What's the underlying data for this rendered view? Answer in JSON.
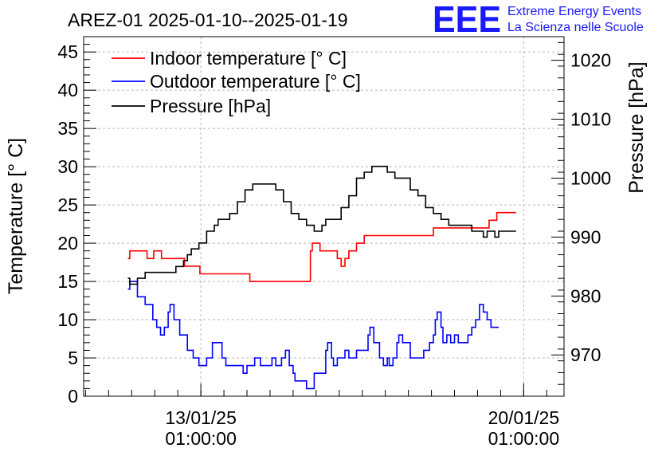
{
  "chart_data": {
    "type": "line",
    "title": "AREZ-01 2025-01-10--2025-01-19",
    "ylabel": "Temperature [° C]",
    "y2label": "Pressure [hPa]",
    "ylim": [
      0,
      47
    ],
    "y2lim": [
      963,
      1024
    ],
    "x_range": [
      "2025-01-10 12:00",
      "2025-01-20 22:00"
    ],
    "grid": true,
    "legend_position": "top-left",
    "yticks": [
      0,
      5,
      10,
      15,
      20,
      25,
      30,
      35,
      40,
      45
    ],
    "y2ticks": [
      970,
      980,
      990,
      1000,
      1010,
      1020
    ],
    "xticks": [
      {
        "x": "2025-01-13 01:00",
        "line1": "13/01/25",
        "line2": "01:00:00"
      },
      {
        "x": "2025-01-20 01:00",
        "line1": "20/01/25",
        "line2": "01:00:00"
      }
    ],
    "series": [
      {
        "name": "Indoor temperature [° C]",
        "color": "#ff0000",
        "axis": "left",
        "points": [
          [
            "2025-01-11 11:00",
            18
          ],
          [
            "2025-01-11 12:00",
            19
          ],
          [
            "2025-01-11 20:00",
            19
          ],
          [
            "2025-01-11 21:00",
            18
          ],
          [
            "2025-01-12 00:00",
            18
          ],
          [
            "2025-01-12 00:30",
            19
          ],
          [
            "2025-01-12 04:00",
            19
          ],
          [
            "2025-01-12 04:30",
            18
          ],
          [
            "2025-01-12 16:00",
            18
          ],
          [
            "2025-01-12 16:30",
            17
          ],
          [
            "2025-01-13 00:00",
            17
          ],
          [
            "2025-01-13 00:30",
            16
          ],
          [
            "2025-01-14 02:00",
            16
          ],
          [
            "2025-01-14 02:30",
            15
          ],
          [
            "2025-01-15 00:00",
            15
          ],
          [
            "2025-01-15 10:00",
            19
          ],
          [
            "2025-01-15 11:00",
            20
          ],
          [
            "2025-01-15 13:00",
            20
          ],
          [
            "2025-01-15 15:00",
            19
          ],
          [
            "2025-01-15 20:00",
            19
          ],
          [
            "2025-01-16 00:00",
            18
          ],
          [
            "2025-01-16 02:00",
            17
          ],
          [
            "2025-01-16 04:00",
            18
          ],
          [
            "2025-01-16 06:00",
            19
          ],
          [
            "2025-01-16 10:00",
            20
          ],
          [
            "2025-01-16 14:00",
            21
          ],
          [
            "2025-01-17 18:00",
            21
          ],
          [
            "2025-01-17 20:00",
            21
          ],
          [
            "2025-01-17 23:00",
            21
          ],
          [
            "2025-01-18 02:00",
            22
          ],
          [
            "2025-01-18 12:00",
            22
          ],
          [
            "2025-01-18 16:00",
            22
          ],
          [
            "2025-01-19 06:00",
            22
          ],
          [
            "2025-01-19 07:00",
            23
          ],
          [
            "2025-01-19 10:00",
            23
          ],
          [
            "2025-01-19 11:00",
            24
          ],
          [
            "2025-01-19 21:00",
            24
          ]
        ]
      },
      {
        "name": "Outdoor temperature [° C]",
        "color": "#0000ff",
        "axis": "left",
        "points": [
          [
            "2025-01-11 11:00",
            14
          ],
          [
            "2025-01-11 12:00",
            15
          ],
          [
            "2025-01-11 16:00",
            13
          ],
          [
            "2025-01-11 20:00",
            12
          ],
          [
            "2025-01-12 00:00",
            10
          ],
          [
            "2025-01-12 02:00",
            9
          ],
          [
            "2025-01-12 04:00",
            8
          ],
          [
            "2025-01-12 06:00",
            9
          ],
          [
            "2025-01-12 08:00",
            11
          ],
          [
            "2025-01-12 09:00",
            12
          ],
          [
            "2025-01-12 11:00",
            10
          ],
          [
            "2025-01-12 14:00",
            8
          ],
          [
            "2025-01-12 18:00",
            6
          ],
          [
            "2025-01-12 21:00",
            5
          ],
          [
            "2025-01-13 00:00",
            4
          ],
          [
            "2025-01-13 04:00",
            5
          ],
          [
            "2025-01-13 07:00",
            7
          ],
          [
            "2025-01-13 09:00",
            7
          ],
          [
            "2025-01-13 12:00",
            5
          ],
          [
            "2025-01-13 14:00",
            4
          ],
          [
            "2025-01-13 17:00",
            4
          ],
          [
            "2025-01-13 20:00",
            4
          ],
          [
            "2025-01-13 23:00",
            3
          ],
          [
            "2025-01-14 01:00",
            4
          ],
          [
            "2025-01-14 05:00",
            5
          ],
          [
            "2025-01-14 08:00",
            4
          ],
          [
            "2025-01-14 12:00",
            4
          ],
          [
            "2025-01-14 14:00",
            5
          ],
          [
            "2025-01-14 16:00",
            4
          ],
          [
            "2025-01-14 19:00",
            5
          ],
          [
            "2025-01-14 21:00",
            6
          ],
          [
            "2025-01-14 23:00",
            4
          ],
          [
            "2025-01-15 01:00",
            3
          ],
          [
            "2025-01-15 02:00",
            2
          ],
          [
            "2025-01-15 06:00",
            2
          ],
          [
            "2025-01-15 08:00",
            1
          ],
          [
            "2025-01-15 12:00",
            3
          ],
          [
            "2025-01-15 18:00",
            6
          ],
          [
            "2025-01-15 19:00",
            7
          ],
          [
            "2025-01-15 21:00",
            5
          ],
          [
            "2025-01-15 22:00",
            4
          ],
          [
            "2025-01-16 00:00",
            5
          ],
          [
            "2025-01-16 02:00",
            5
          ],
          [
            "2025-01-16 04:00",
            6
          ],
          [
            "2025-01-16 06:00",
            5
          ],
          [
            "2025-01-16 08:00",
            5
          ],
          [
            "2025-01-16 10:00",
            6
          ],
          [
            "2025-01-16 13:00",
            6
          ],
          [
            "2025-01-16 16:00",
            8
          ],
          [
            "2025-01-16 17:00",
            9
          ],
          [
            "2025-01-16 19:00",
            7
          ],
          [
            "2025-01-16 22:00",
            5
          ],
          [
            "2025-01-17 00:00",
            4
          ],
          [
            "2025-01-17 02:00",
            5
          ],
          [
            "2025-01-17 03:00",
            4
          ],
          [
            "2025-01-17 05:00",
            5
          ],
          [
            "2025-01-17 07:00",
            7
          ],
          [
            "2025-01-17 08:00",
            8
          ],
          [
            "2025-01-17 10:00",
            7
          ],
          [
            "2025-01-17 12:00",
            7
          ],
          [
            "2025-01-17 14:00",
            5
          ],
          [
            "2025-01-17 19:00",
            5
          ],
          [
            "2025-01-17 21:00",
            6
          ],
          [
            "2025-01-18 00:00",
            7
          ],
          [
            "2025-01-18 02:00",
            8
          ],
          [
            "2025-01-18 03:00",
            10
          ],
          [
            "2025-01-18 04:00",
            11
          ],
          [
            "2025-01-18 06:00",
            9
          ],
          [
            "2025-01-18 07:00",
            7
          ],
          [
            "2025-01-18 09:00",
            8
          ],
          [
            "2025-01-18 11:00",
            7
          ],
          [
            "2025-01-18 13:00",
            8
          ],
          [
            "2025-01-18 15:00",
            7
          ],
          [
            "2025-01-18 18:00",
            7
          ],
          [
            "2025-01-18 20:00",
            8
          ],
          [
            "2025-01-18 22:00",
            9
          ],
          [
            "2025-01-19 00:00",
            10
          ],
          [
            "2025-01-19 02:00",
            12
          ],
          [
            "2025-01-19 04:00",
            11
          ],
          [
            "2025-01-19 06:00",
            10
          ],
          [
            "2025-01-19 08:00",
            9
          ],
          [
            "2025-01-19 10:00",
            9
          ],
          [
            "2025-01-19 12:00",
            9
          ]
        ]
      },
      {
        "name": "Pressure [hPa]",
        "color": "#000000",
        "axis": "right",
        "points": [
          [
            "2025-01-11 11:00",
            983
          ],
          [
            "2025-01-11 12:00",
            982
          ],
          [
            "2025-01-11 16:00",
            983
          ],
          [
            "2025-01-11 20:00",
            984
          ],
          [
            "2025-01-12 00:00",
            984
          ],
          [
            "2025-01-12 04:00",
            984
          ],
          [
            "2025-01-12 08:00",
            984
          ],
          [
            "2025-01-12 12:00",
            985
          ],
          [
            "2025-01-12 16:00",
            986
          ],
          [
            "2025-01-12 18:00",
            987
          ],
          [
            "2025-01-12 20:00",
            988
          ],
          [
            "2025-01-13 00:00",
            989
          ],
          [
            "2025-01-13 04:00",
            991
          ],
          [
            "2025-01-13 08:00",
            992
          ],
          [
            "2025-01-13 10:00",
            993
          ],
          [
            "2025-01-13 13:00",
            993
          ],
          [
            "2025-01-13 16:00",
            994
          ],
          [
            "2025-01-13 20:00",
            996
          ],
          [
            "2025-01-14 00:00",
            998
          ],
          [
            "2025-01-14 04:00",
            999
          ],
          [
            "2025-01-14 08:00",
            999
          ],
          [
            "2025-01-14 12:00",
            999
          ],
          [
            "2025-01-14 16:00",
            998
          ],
          [
            "2025-01-14 20:00",
            996
          ],
          [
            "2025-01-15 00:00",
            994
          ],
          [
            "2025-01-15 04:00",
            993
          ],
          [
            "2025-01-15 08:00",
            992
          ],
          [
            "2025-01-15 12:00",
            991
          ],
          [
            "2025-01-15 16:00",
            992
          ],
          [
            "2025-01-15 18:00",
            993
          ],
          [
            "2025-01-15 22:00",
            993
          ],
          [
            "2025-01-16 02:00",
            995
          ],
          [
            "2025-01-16 06:00",
            997
          ],
          [
            "2025-01-16 10:00",
            1000
          ],
          [
            "2025-01-16 14:00",
            1001
          ],
          [
            "2025-01-16 18:00",
            1002
          ],
          [
            "2025-01-16 22:00",
            1002
          ],
          [
            "2025-01-17 02:00",
            1001
          ],
          [
            "2025-01-17 06:00",
            1000
          ],
          [
            "2025-01-17 10:00",
            1000
          ],
          [
            "2025-01-17 14:00",
            998
          ],
          [
            "2025-01-17 18:00",
            997
          ],
          [
            "2025-01-17 22:00",
            995
          ],
          [
            "2025-01-18 02:00",
            994
          ],
          [
            "2025-01-18 06:00",
            993
          ],
          [
            "2025-01-18 10:00",
            992
          ],
          [
            "2025-01-18 14:00",
            992
          ],
          [
            "2025-01-18 18:00",
            992
          ],
          [
            "2025-01-18 22:00",
            991
          ],
          [
            "2025-01-19 02:00",
            991
          ],
          [
            "2025-01-19 04:00",
            990
          ],
          [
            "2025-01-19 06:00",
            991
          ],
          [
            "2025-01-19 10:00",
            990
          ],
          [
            "2025-01-19 12:00",
            991
          ],
          [
            "2025-01-19 21:00",
            991
          ]
        ]
      }
    ]
  },
  "logo": {
    "mark": "EEE",
    "line1": "Extreme Energy Events",
    "line2": "La Scienza nelle Scuole",
    "color": "#1a1aff"
  }
}
